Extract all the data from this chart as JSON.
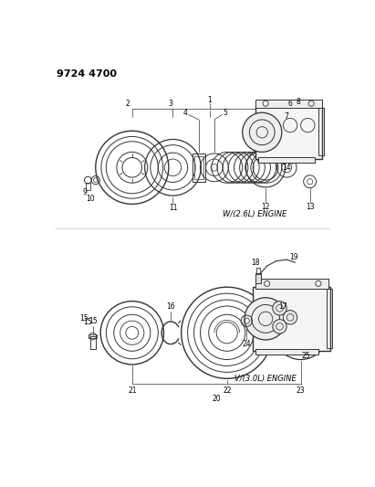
{
  "title": "9724 4700",
  "bg": "#ffffff",
  "lc": "#333333",
  "tc": "#000000",
  "engine1_label": "W/(2.6L) ENGINE",
  "engine2_label": "V/(3.0L) ENGINE",
  "fig_w": 4.11,
  "fig_h": 5.33,
  "dpi": 100
}
